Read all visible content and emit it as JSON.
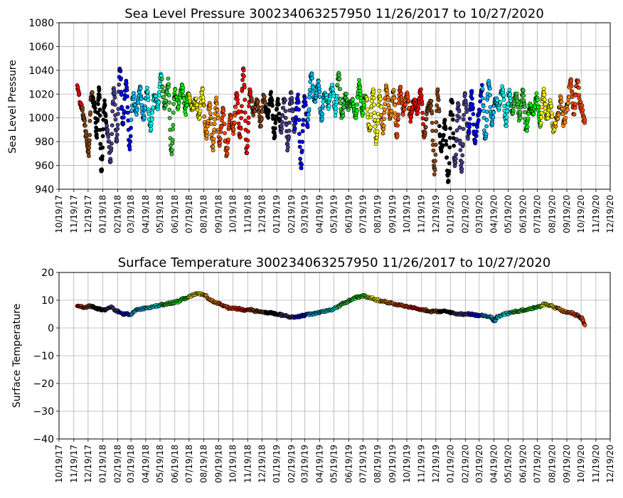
{
  "chart_data": [
    {
      "type": "scatter",
      "title": "Sea Level Pressure 300234063257950  11/26/2017 to 10/27/2020",
      "ylabel": "Sea Level Pressure",
      "xlabel": "",
      "ylim": [
        940,
        1080
      ],
      "yticks": [
        "940",
        "960",
        "980",
        "1000",
        "1020",
        "1040",
        "1060",
        "1080"
      ],
      "xlim": [
        "10/19/17",
        "12/19/20"
      ],
      "xticks": [
        "10/19/17",
        "11/19/17",
        "12/19/17",
        "01/19/18",
        "02/19/18",
        "03/19/18",
        "04/19/18",
        "05/19/18",
        "06/19/18",
        "07/19/18",
        "08/19/18",
        "09/19/18",
        "10/19/18",
        "11/19/18",
        "12/19/18",
        "01/19/19",
        "02/19/19",
        "03/19/19",
        "04/19/19",
        "05/19/19",
        "06/19/19",
        "07/19/19",
        "08/19/19",
        "09/19/19",
        "10/19/19",
        "11/19/19",
        "12/19/19",
        "01/19/20",
        "02/19/20",
        "03/19/20",
        "04/19/20",
        "05/19/20",
        "06/19/20",
        "07/19/20",
        "08/19/20",
        "09/19/20",
        "10/19/20",
        "11/19/20",
        "12/19/20"
      ],
      "grid": true,
      "series_colors": [
        "#ff0000",
        "#8b4513",
        "#000000",
        "#483d8b",
        "#0000ff",
        "#00bfff",
        "#00ffff",
        "#32cd32",
        "#00ff00",
        "#ffff00",
        "#ff8c00",
        "#ff4500"
      ],
      "color_schedule": [
        {
          "start": "11/26/17",
          "end": "12/06/17",
          "color": "#ff0000"
        },
        {
          "start": "12/06/17",
          "end": "12/28/17",
          "color": "#8b4513"
        },
        {
          "start": "12/28/17",
          "end": "01/26/18",
          "color": "#000000"
        },
        {
          "start": "01/26/18",
          "end": "02/22/18",
          "color": "#483d8b"
        },
        {
          "start": "02/22/18",
          "end": "03/19/18",
          "color": "#0000ff"
        },
        {
          "start": "03/19/18",
          "end": "04/20/18",
          "color": "#00bfff"
        },
        {
          "start": "04/20/18",
          "end": "05/22/18",
          "color": "#00ffff"
        },
        {
          "start": "05/22/18",
          "end": "06/18/18",
          "color": "#32cd32"
        },
        {
          "start": "06/18/18",
          "end": "07/19/18",
          "color": "#00ff00"
        },
        {
          "start": "07/19/18",
          "end": "08/19/18",
          "color": "#ffff00"
        },
        {
          "start": "08/19/18",
          "end": "09/19/18",
          "color": "#ff8c00"
        },
        {
          "start": "09/19/18",
          "end": "10/26/18",
          "color": "#ff4500"
        },
        {
          "start": "10/26/18",
          "end": "11/26/18",
          "color": "#ff0000"
        },
        {
          "start": "11/26/18",
          "end": "12/26/18",
          "color": "#8b4513"
        },
        {
          "start": "12/26/18",
          "end": "01/26/19",
          "color": "#000000"
        },
        {
          "start": "01/26/19",
          "end": "02/26/19",
          "color": "#483d8b"
        },
        {
          "start": "02/26/19",
          "end": "03/26/19",
          "color": "#0000ff"
        },
        {
          "start": "03/26/19",
          "end": "04/26/19",
          "color": "#00bfff"
        },
        {
          "start": "04/26/19",
          "end": "05/26/19",
          "color": "#00ffff"
        },
        {
          "start": "05/26/19",
          "end": "06/26/19",
          "color": "#32cd32"
        },
        {
          "start": "06/26/19",
          "end": "07/26/19",
          "color": "#00ff00"
        },
        {
          "start": "07/26/19",
          "end": "08/26/19",
          "color": "#ffff00"
        },
        {
          "start": "08/26/19",
          "end": "09/26/19",
          "color": "#ff8c00"
        },
        {
          "start": "09/26/19",
          "end": "10/26/19",
          "color": "#ff4500"
        },
        {
          "start": "10/26/19",
          "end": "11/26/19",
          "color": "#ff0000"
        },
        {
          "start": "11/26/19",
          "end": "12/26/19",
          "color": "#8b4513"
        },
        {
          "start": "12/26/19",
          "end": "01/26/20",
          "color": "#000000"
        },
        {
          "start": "01/26/20",
          "end": "02/26/20",
          "color": "#483d8b"
        },
        {
          "start": "02/26/20",
          "end": "03/26/20",
          "color": "#0000ff"
        },
        {
          "start": "03/26/20",
          "end": "04/26/20",
          "color": "#00bfff"
        },
        {
          "start": "04/26/20",
          "end": "05/26/20",
          "color": "#00ffff"
        },
        {
          "start": "05/26/20",
          "end": "06/26/20",
          "color": "#32cd32"
        },
        {
          "start": "06/26/20",
          "end": "07/26/20",
          "color": "#00ff00"
        },
        {
          "start": "07/26/20",
          "end": "08/26/20",
          "color": "#ffff00"
        },
        {
          "start": "08/26/20",
          "end": "09/26/20",
          "color": "#ff8c00"
        },
        {
          "start": "09/26/20",
          "end": "10/27/20",
          "color": "#ff4500"
        }
      ],
      "x": [
        "11/26/17",
        "12/05/17",
        "12/10/17",
        "12/15/17",
        "12/20/17",
        "12/26/17",
        "01/01/18",
        "01/06/18",
        "01/11/18",
        "01/16/18",
        "01/22/18",
        "01/28/18",
        "02/04/18",
        "02/11/18",
        "02/17/18",
        "02/24/18",
        "03/02/18",
        "03/09/18",
        "03/16/18",
        "03/23/18",
        "03/30/18",
        "04/07/18",
        "04/14/18",
        "04/22/18",
        "04/29/18",
        "05/07/18",
        "05/14/18",
        "05/21/18",
        "05/29/18",
        "06/05/18",
        "06/12/18",
        "06/19/18",
        "06/26/18",
        "07/04/18",
        "07/11/18",
        "07/18/18",
        "07/25/18",
        "08/02/18",
        "08/09/18",
        "08/16/18",
        "08/24/18",
        "08/31/18",
        "09/07/18",
        "09/14/18",
        "09/21/18",
        "09/28/18",
        "10/06/18",
        "10/13/18",
        "10/20/18",
        "10/27/18",
        "11/03/18",
        "11/10/18",
        "11/17/18",
        "11/24/18",
        "12/01/18",
        "12/09/18",
        "12/16/18",
        "12/23/18",
        "12/31/18",
        "01/07/19",
        "01/14/19",
        "01/21/19",
        "01/28/19",
        "02/04/19",
        "02/11/19",
        "02/18/19",
        "02/25/19",
        "03/04/19",
        "03/11/19",
        "03/18/19",
        "03/25/19",
        "04/01/19",
        "04/09/19",
        "04/16/19",
        "04/23/19",
        "04/30/19",
        "05/07/19",
        "05/15/19",
        "05/22/19",
        "05/29/19",
        "06/05/19",
        "06/12/19",
        "06/19/19",
        "06/27/19",
        "07/04/19",
        "07/11/19",
        "07/18/19",
        "07/25/19",
        "08/02/19",
        "08/09/19",
        "08/16/19",
        "08/23/19",
        "08/30/19",
        "09/06/19",
        "09/14/19",
        "09/21/19",
        "09/28/19",
        "10/05/19",
        "10/12/19",
        "10/20/19",
        "10/27/19",
        "11/03/19",
        "11/10/19",
        "11/17/19",
        "11/25/19",
        "12/02/19",
        "12/09/19",
        "12/16/19",
        "12/23/19",
        "12/30/19",
        "01/07/20",
        "01/14/20",
        "01/21/20",
        "01/28/20",
        "02/04/20",
        "02/11/20",
        "02/18/20",
        "02/25/20",
        "03/03/20",
        "03/10/20",
        "03/17/20",
        "03/25/20",
        "04/01/20",
        "04/08/20",
        "04/15/20",
        "04/22/20",
        "04/29/20",
        "05/07/20",
        "05/14/20",
        "05/21/20",
        "05/28/20",
        "06/04/20",
        "06/12/20",
        "06/19/20",
        "06/26/20",
        "07/03/20",
        "07/10/20",
        "07/18/20",
        "07/25/20",
        "08/01/20",
        "08/08/20",
        "08/15/20",
        "08/22/20",
        "08/30/20",
        "09/06/20",
        "09/13/20",
        "09/20/20",
        "09/27/20",
        "10/04/20",
        "10/11/20",
        "10/18/20",
        "10/27/20"
      ],
      "y": [
        1028,
        1010,
        1000,
        985,
        970,
        1020,
        1012,
        985,
        1025,
        955,
        1012,
        990,
        965,
        1025,
        980,
        1042,
        995,
        1030,
        975,
        1020,
        1005,
        1025,
        1000,
        1022,
        990,
        1018,
        1010,
        1034,
        1010,
        1030,
        970,
        1022,
        1010,
        1028,
        1005,
        1020,
        1008,
        1015,
        1000,
        1022,
        985,
        1010,
        975,
        1015,
        980,
        1005,
        970,
        1000,
        990,
        1020,
        985,
        1040,
        970,
        1022,
        1005,
        1015,
        995,
        1018,
        1002,
        1020,
        985,
        1015,
        990,
        1018,
        975,
        1020,
        990,
        1018,
        960,
        1015,
        995,
        1037,
        1015,
        1030,
        1000,
        1022,
        1010,
        1025,
        1005,
        1035,
        1000,
        1018,
        1010,
        1015,
        1000,
        1030,
        1005,
        1020,
        990,
        1022,
        980,
        1020,
        990,
        1025,
        1000,
        1022,
        985,
        1025,
        1005,
        1020,
        1000,
        1015,
        1005,
        1022,
        985,
        1008,
        1012,
        955,
        1022,
        970,
        995,
        945,
        1018,
        960,
        1010,
        958,
        1020,
        985,
        1020,
        980,
        1000,
        1025,
        982,
        1030,
        995,
        1016,
        1010,
        1024,
        995,
        1022,
        1005,
        1020,
        1000,
        1022,
        990,
        1010,
        1005,
        1018,
        995,
        1022,
        1000,
        1012,
        990,
        1000,
        1015,
        995,
        1010,
        1030,
        1005,
        1032,
        1010,
        998
      ]
    },
    {
      "type": "scatter",
      "title": "Surface Temperature 300234063257950  11/26/2017 to 10/27/2020",
      "ylabel": "Surface Temperature",
      "xlabel": "",
      "ylim": [
        -40,
        20
      ],
      "yticks": [
        "−40",
        "−30",
        "−20",
        "−10",
        "0",
        "10",
        "20"
      ],
      "xlim": [
        "10/19/17",
        "12/19/20"
      ],
      "xticks": [
        "10/19/17",
        "11/19/17",
        "12/19/17",
        "01/19/18",
        "02/19/18",
        "03/19/18",
        "04/19/18",
        "05/19/18",
        "06/19/18",
        "07/19/18",
        "08/19/18",
        "09/19/18",
        "10/19/18",
        "11/19/18",
        "12/19/18",
        "01/19/19",
        "02/19/19",
        "03/19/19",
        "04/19/19",
        "05/19/19",
        "06/19/19",
        "07/19/19",
        "08/19/19",
        "09/19/19",
        "10/19/19",
        "11/19/19",
        "12/19/19",
        "01/19/20",
        "02/19/20",
        "03/19/20",
        "04/19/20",
        "05/19/20",
        "06/19/20",
        "07/19/20",
        "08/19/20",
        "09/19/20",
        "10/19/20",
        "11/19/20",
        "12/19/20"
      ],
      "grid": true,
      "x": [
        "11/26/17",
        "12/10/17",
        "12/24/17",
        "01/07/18",
        "01/21/18",
        "02/04/18",
        "02/18/18",
        "03/04/18",
        "03/18/18",
        "04/01/18",
        "04/15/18",
        "04/29/18",
        "05/13/18",
        "05/27/18",
        "06/10/18",
        "06/24/18",
        "07/08/18",
        "07/22/18",
        "08/05/18",
        "08/19/18",
        "09/02/18",
        "09/16/18",
        "09/30/18",
        "10/14/18",
        "10/28/18",
        "11/11/18",
        "11/25/18",
        "12/09/18",
        "12/23/18",
        "01/06/19",
        "01/20/19",
        "02/03/19",
        "02/17/19",
        "03/03/19",
        "03/17/19",
        "03/31/19",
        "04/14/19",
        "04/28/19",
        "05/12/19",
        "05/26/19",
        "06/09/19",
        "06/23/19",
        "07/07/19",
        "07/21/19",
        "08/04/19",
        "08/18/19",
        "09/01/19",
        "09/15/19",
        "09/29/19",
        "10/13/19",
        "10/27/19",
        "11/10/19",
        "11/24/19",
        "12/08/19",
        "12/22/19",
        "01/05/20",
        "01/19/20",
        "02/02/20",
        "02/16/20",
        "03/01/20",
        "03/15/20",
        "03/29/20",
        "04/12/20",
        "04/20/20",
        "04/26/20",
        "05/10/20",
        "05/24/20",
        "06/07/20",
        "06/21/20",
        "07/05/20",
        "07/19/20",
        "08/02/20",
        "08/16/20",
        "08/30/20",
        "09/13/20",
        "09/27/20",
        "10/11/20",
        "10/20/20",
        "10/27/20"
      ],
      "y": [
        8,
        7.5,
        7.8,
        7,
        6.5,
        7.5,
        6,
        5,
        5,
        6.5,
        7,
        7.5,
        8,
        8.5,
        9,
        9.5,
        10.5,
        11.5,
        12.5,
        12,
        10,
        9,
        8,
        7,
        7,
        6.5,
        6.5,
        6,
        5.5,
        5.5,
        5,
        4.5,
        4,
        4,
        4.5,
        5,
        5.5,
        6,
        6.5,
        7.5,
        9,
        10,
        11,
        11.5,
        11,
        10,
        9.5,
        9,
        8.5,
        8,
        7.5,
        7,
        6.5,
        6,
        6,
        6,
        5.5,
        5,
        5,
        5,
        4.5,
        4.5,
        4,
        2.5,
        4,
        5,
        5.5,
        6,
        6.5,
        7,
        7.5,
        8.5,
        8,
        7,
        6,
        5.5,
        4.5,
        3.5,
        1
      ]
    }
  ]
}
